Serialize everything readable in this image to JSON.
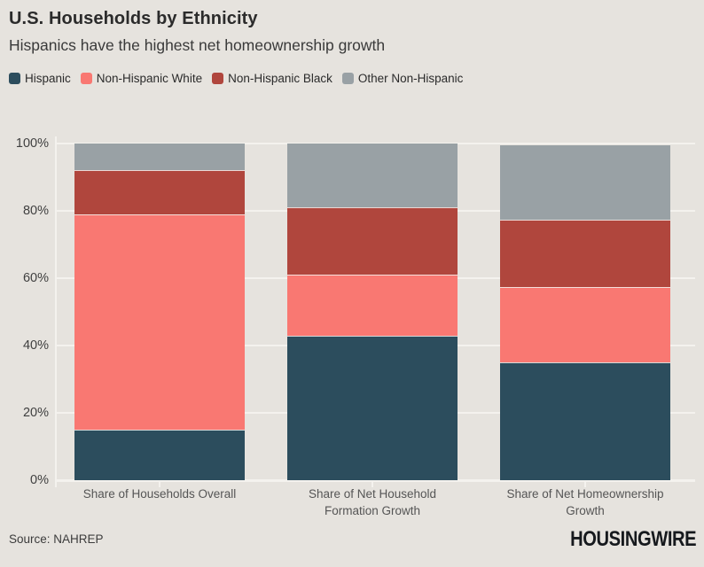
{
  "chart_data": {
    "type": "bar",
    "stacked": true,
    "title": "U.S. Households by Ethnicity",
    "subtitle": "Hispanics have the highest net homeownership growth",
    "categories": [
      "Share of Households Overall",
      "Share of Net Household Formation Growth",
      "Share of Net Homeownership Growth"
    ],
    "category_wrapped": [
      [
        "Share of Households Overall"
      ],
      [
        "Share of Net Household",
        "Formation Growth"
      ],
      [
        "Share of Net Homeownership",
        "Growth"
      ]
    ],
    "series": [
      {
        "name": "Hispanic",
        "color": "#2c4d5d",
        "values": [
          15,
          43,
          35
        ]
      },
      {
        "name": "Non-Hispanic White",
        "color": "#f97872",
        "values": [
          64,
          18,
          22.5
        ]
      },
      {
        "name": "Non-Hispanic Black",
        "color": "#b0463d",
        "values": [
          13,
          20,
          20
        ]
      },
      {
        "name": "Other Non-Hispanic",
        "color": "#99a1a5",
        "values": [
          8,
          19,
          22
        ]
      }
    ],
    "xlabel": "",
    "ylabel": "",
    "ylim": [
      0,
      100
    ],
    "yticks": [
      "0%",
      "20%",
      "40%",
      "60%",
      "80%",
      "100%"
    ],
    "grid": true,
    "legend_position": "top"
  },
  "footer": {
    "source": "Source: NAHREP",
    "brand": "HOUSINGWIRE"
  },
  "colors": {
    "background": "#e6e3de",
    "gridline": "#f4f2ee",
    "title_text": "#2b2b2b",
    "subtitle_text": "#3a3a3a",
    "axis_label_text": "#555555",
    "ytick_text": "#404040",
    "brand_text": "#16191d"
  }
}
